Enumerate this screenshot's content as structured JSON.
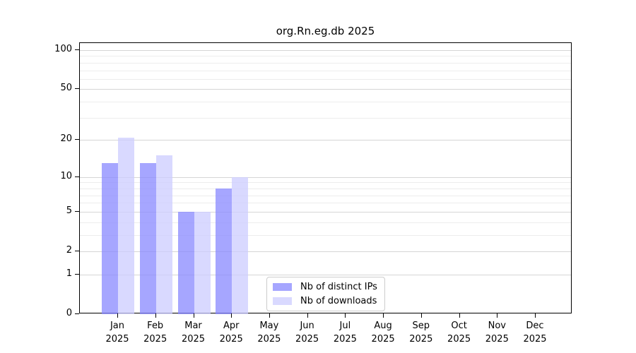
{
  "chart_data": {
    "type": "bar",
    "title": "org.Rn.eg.db 2025",
    "categories": [
      "Jan 2025",
      "Feb 2025",
      "Mar 2025",
      "Apr 2025",
      "May 2025",
      "Jun 2025",
      "Jul 2025",
      "Aug 2025",
      "Sep 2025",
      "Oct 2025",
      "Nov 2025",
      "Dec 2025"
    ],
    "series": [
      {
        "name": "Nb of distinct IPs",
        "color": "#8888ff",
        "opacity": 0.75,
        "values": [
          13,
          13,
          5,
          8,
          null,
          null,
          null,
          null,
          null,
          null,
          null,
          null
        ]
      },
      {
        "name": "Nb of downloads",
        "color": "#ccccff",
        "opacity": 0.75,
        "values": [
          21,
          15,
          5,
          10,
          null,
          null,
          null,
          null,
          null,
          null,
          null,
          null
        ]
      }
    ],
    "yscale": "log1p",
    "ylim": [
      0,
      100
    ],
    "yticks": [
      0,
      1,
      2,
      5,
      10,
      20,
      50,
      100
    ],
    "minor_gridlines": [
      3,
      4,
      6,
      7,
      8,
      9,
      30,
      40,
      60,
      70,
      80,
      90
    ],
    "grid": true,
    "legend_position": "lower center",
    "grid_major_color": "#d6d6d6",
    "grid_minor_color": "#ededed",
    "axis_color": "#000000"
  }
}
